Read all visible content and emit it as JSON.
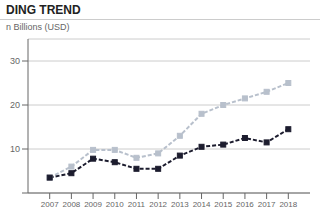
{
  "chart_data": {
    "type": "line",
    "title": "DING TREND",
    "y_label": "n Billions (USD)",
    "x": [
      2007,
      2008,
      2009,
      2010,
      2011,
      2012,
      2013,
      2014,
      2015,
      2016,
      2017,
      2018
    ],
    "series": [
      {
        "color": "#b8c0cc",
        "values": [
          3.5,
          6.0,
          9.8,
          9.8,
          8.0,
          9.0,
          13.0,
          18.0,
          20.0,
          21.5,
          23.0,
          25.0
        ],
        "marker": "square",
        "line_style": "dashed"
      },
      {
        "color": "#1c1c2e",
        "values": [
          3.5,
          4.5,
          7.8,
          7.0,
          5.5,
          5.5,
          8.5,
          10.5,
          11.0,
          12.5,
          11.5,
          14.5
        ],
        "marker": "square",
        "line_style": "dashed"
      }
    ],
    "xlim": [
      2006,
      2019
    ],
    "xticks": [
      2007,
      2008,
      2009,
      2010,
      2011,
      2012,
      2013,
      2014,
      2015,
      2016,
      2017,
      2018
    ],
    "ylim": [
      0,
      35
    ],
    "yticks": [
      {
        "value": 0,
        "label": ""
      },
      10,
      20,
      30
    ],
    "grid": true
  }
}
